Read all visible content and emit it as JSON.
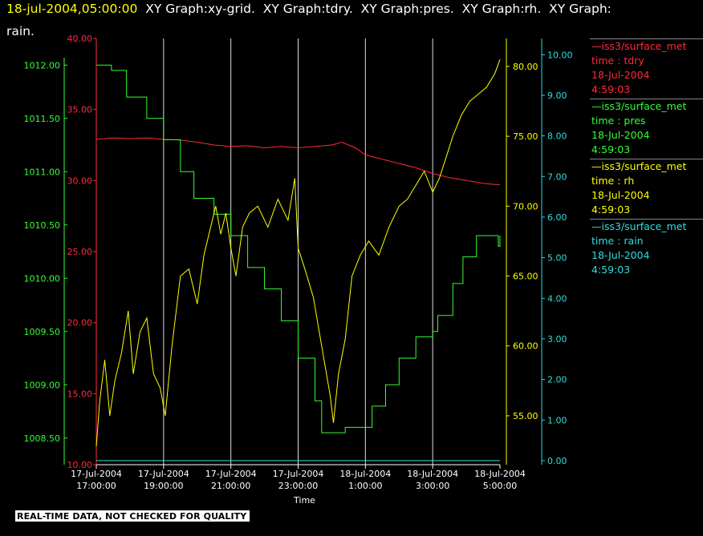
{
  "title": {
    "timestamp": "18-jul-2004,05:00:00",
    "line1_rest": "  XY Graph:xy-grid.  XY Graph:tdry.  XY Graph:pres.  XY Graph:rh.  XY Graph:",
    "line2": "rain."
  },
  "note": "REAL-TIME DATA, NOT CHECKED FOR QUALITY",
  "colors": {
    "tdry": "#ff2a3a",
    "pres": "#33ff33",
    "rh": "#ffff00",
    "rain": "#33dddd",
    "grid": "#ffffff"
  },
  "legend": [
    {
      "key": "tdry",
      "line1": "—iss3/surface_met",
      "line2": "time : tdry",
      "line3": "18-Jul-2004",
      "line4": "4:59:03"
    },
    {
      "key": "pres",
      "line1": "—iss3/surface_met",
      "line2": "time : pres",
      "line3": "18-Jul-2004",
      "line4": "4:59:03"
    },
    {
      "key": "rh",
      "line1": "—iss3/surface_met",
      "line2": "time : rh",
      "line3": "18-Jul-2004",
      "line4": "4:59:03"
    },
    {
      "key": "rain",
      "line1": "—iss3/surface_met",
      "line2": "time : rain",
      "line3": "18-Jul-2004",
      "line4": "4:59:03"
    }
  ],
  "chart_data": {
    "type": "line",
    "xlabel": "Time",
    "x_range_hours": [
      17.0,
      29.0
    ],
    "x_ticks": [
      {
        "t": 17,
        "date": "17-Jul-2004",
        "time": "17:00:00"
      },
      {
        "t": 19,
        "date": "17-Jul-2004",
        "time": "19:00:00"
      },
      {
        "t": 21,
        "date": "17-Jul-2004",
        "time": "21:00:00"
      },
      {
        "t": 23,
        "date": "17-Jul-2004",
        "time": "23:00:00"
      },
      {
        "t": 25,
        "date": "18-Jul-2004",
        "time": "1:00:00"
      },
      {
        "t": 27,
        "date": "18-Jul-2004",
        "time": "3:00:00"
      },
      {
        "t": 29,
        "date": "18-Jul-2004",
        "time": "5:00:00"
      }
    ],
    "axes": {
      "pres": {
        "range": [
          1008.25,
          1012.25
        ],
        "ticks": [
          "1008.50",
          "1009.00",
          "1009.50",
          "1010.00",
          "1010.50",
          "1011.00",
          "1011.50",
          "1012.00"
        ]
      },
      "tdry": {
        "range": [
          10.0,
          40.0
        ],
        "ticks": [
          "10.00",
          "15.00",
          "20.00",
          "25.00",
          "30.00",
          "35.00",
          "40.00"
        ]
      },
      "rh": {
        "range": [
          51.5,
          82.0
        ],
        "ticks": [
          "55.00",
          "60.00",
          "65.00",
          "70.00",
          "75.00",
          "80.00"
        ]
      },
      "rain": {
        "range": [
          -0.1,
          10.4
        ],
        "ticks": [
          "0.00",
          "1.00",
          "2.00",
          "3.00",
          "4.00",
          "5.00",
          "6.00",
          "7.00",
          "8.00",
          "9.00",
          "10.00"
        ]
      }
    },
    "series": [
      {
        "name": "iss3/surface_met time : tdry",
        "key": "tdry",
        "points": [
          [
            17.0,
            32.9
          ],
          [
            17.5,
            33.0
          ],
          [
            18.0,
            32.95
          ],
          [
            18.5,
            33.0
          ],
          [
            19.0,
            32.9
          ],
          [
            19.5,
            32.85
          ],
          [
            20.0,
            32.7
          ],
          [
            20.5,
            32.5
          ],
          [
            21.0,
            32.4
          ],
          [
            21.5,
            32.45
          ],
          [
            22.0,
            32.3
          ],
          [
            22.5,
            32.4
          ],
          [
            23.0,
            32.3
          ],
          [
            23.5,
            32.4
          ],
          [
            24.0,
            32.5
          ],
          [
            24.3,
            32.7
          ],
          [
            24.7,
            32.3
          ],
          [
            25.0,
            31.8
          ],
          [
            25.5,
            31.5
          ],
          [
            26.0,
            31.2
          ],
          [
            26.5,
            30.9
          ],
          [
            27.0,
            30.5
          ],
          [
            27.5,
            30.2
          ],
          [
            28.0,
            30.0
          ],
          [
            28.5,
            29.8
          ],
          [
            29.0,
            29.7
          ]
        ]
      },
      {
        "name": "iss3/surface_met time : pres",
        "key": "pres",
        "points": [
          [
            17.0,
            1012.0
          ],
          [
            17.45,
            1011.95
          ],
          [
            17.9,
            1011.7
          ],
          [
            18.5,
            1011.5
          ],
          [
            19.0,
            1011.3
          ],
          [
            19.5,
            1011.0
          ],
          [
            19.9,
            1010.75
          ],
          [
            20.5,
            1010.6
          ],
          [
            21.0,
            1010.4
          ],
          [
            21.5,
            1010.1
          ],
          [
            22.0,
            1009.9
          ],
          [
            22.5,
            1009.6
          ],
          [
            23.0,
            1009.25
          ],
          [
            23.5,
            1008.85
          ],
          [
            23.7,
            1008.55
          ],
          [
            24.2,
            1008.55
          ],
          [
            24.4,
            1008.6
          ],
          [
            24.9,
            1008.6
          ],
          [
            25.2,
            1008.8
          ],
          [
            25.6,
            1009.0
          ],
          [
            26.0,
            1009.25
          ],
          [
            26.5,
            1009.45
          ],
          [
            27.0,
            1009.5
          ],
          [
            27.15,
            1009.65
          ],
          [
            27.6,
            1009.95
          ],
          [
            27.9,
            1010.2
          ],
          [
            28.3,
            1010.4
          ],
          [
            28.9,
            1010.4
          ],
          [
            28.95,
            1010.3
          ],
          [
            29.0,
            1010.4
          ]
        ]
      },
      {
        "name": "iss3/surface_met time : rh",
        "key": "rh",
        "points": [
          [
            17.0,
            52.8
          ],
          [
            17.1,
            56.0
          ],
          [
            17.25,
            59.0
          ],
          [
            17.4,
            55.0
          ],
          [
            17.55,
            57.5
          ],
          [
            17.75,
            59.5
          ],
          [
            17.95,
            62.5
          ],
          [
            18.1,
            58.0
          ],
          [
            18.3,
            61.0
          ],
          [
            18.5,
            62.0
          ],
          [
            18.7,
            58.0
          ],
          [
            18.9,
            57.0
          ],
          [
            19.05,
            55.0
          ],
          [
            19.25,
            60.0
          ],
          [
            19.5,
            65.0
          ],
          [
            19.75,
            65.5
          ],
          [
            20.0,
            63.0
          ],
          [
            20.2,
            66.5
          ],
          [
            20.4,
            68.5
          ],
          [
            20.55,
            70.0
          ],
          [
            20.7,
            68.0
          ],
          [
            20.85,
            69.5
          ],
          [
            21.0,
            67.0
          ],
          [
            21.15,
            65.0
          ],
          [
            21.35,
            68.5
          ],
          [
            21.55,
            69.5
          ],
          [
            21.8,
            70.0
          ],
          [
            22.1,
            68.5
          ],
          [
            22.4,
            70.5
          ],
          [
            22.7,
            69.0
          ],
          [
            22.9,
            72.0
          ],
          [
            23.0,
            67.0
          ],
          [
            23.2,
            65.5
          ],
          [
            23.45,
            63.5
          ],
          [
            23.7,
            60.0
          ],
          [
            23.95,
            56.5
          ],
          [
            24.05,
            54.5
          ],
          [
            24.2,
            58.0
          ],
          [
            24.4,
            60.5
          ],
          [
            24.6,
            65.0
          ],
          [
            24.85,
            66.5
          ],
          [
            25.1,
            67.5
          ],
          [
            25.4,
            66.5
          ],
          [
            25.7,
            68.5
          ],
          [
            26.0,
            70.0
          ],
          [
            26.25,
            70.5
          ],
          [
            26.5,
            71.5
          ],
          [
            26.75,
            72.5
          ],
          [
            27.0,
            71.0
          ],
          [
            27.2,
            72.0
          ],
          [
            27.4,
            73.5
          ],
          [
            27.6,
            75.0
          ],
          [
            27.85,
            76.5
          ],
          [
            28.1,
            77.5
          ],
          [
            28.35,
            78.0
          ],
          [
            28.6,
            78.5
          ],
          [
            28.85,
            79.5
          ],
          [
            29.0,
            80.5
          ]
        ]
      },
      {
        "name": "iss3/surface_met time : rain",
        "key": "rain",
        "points": [
          [
            17.0,
            0.0
          ],
          [
            29.0,
            0.0
          ]
        ]
      }
    ]
  }
}
